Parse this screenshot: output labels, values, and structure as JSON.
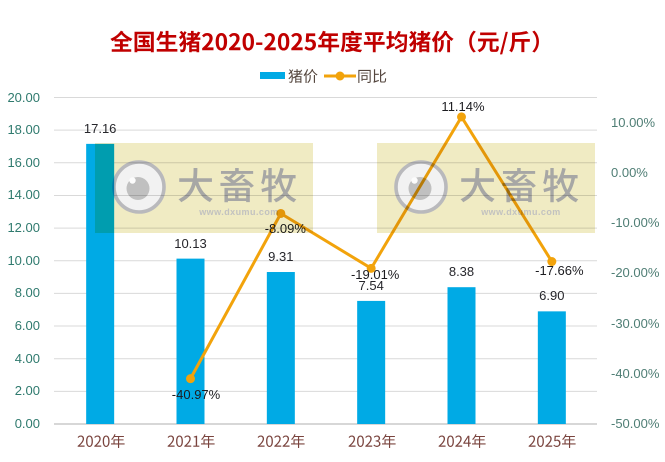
{
  "chart_data": {
    "type": "combo-bar-line",
    "title": "全国生猪2020-2025年度平均猪价（元/斤）",
    "title_color": "#C00000",
    "categories": [
      "2020年",
      "2021年",
      "2022年",
      "2023年",
      "2024年",
      "2025年"
    ],
    "series": [
      {
        "name": "猪价",
        "type": "bar",
        "axis": "left",
        "color": "#00AAE5",
        "values": [
          17.16,
          10.13,
          9.31,
          7.54,
          8.38,
          6.9
        ],
        "labels": [
          "17.16",
          "10.13",
          "9.31",
          "7.54",
          "8.38",
          "6.90"
        ]
      },
      {
        "name": "同比",
        "type": "line",
        "axis": "right",
        "color": "#F2A30B",
        "values": [
          null,
          -40.97,
          -8.09,
          -19.01,
          11.14,
          -17.66
        ],
        "labels": [
          "",
          "-40.97%",
          "-8.09%",
          "-19.01%",
          "11.14%",
          "-17.66%"
        ]
      }
    ],
    "left_axis": {
      "min": 0,
      "max": 20,
      "step": 2,
      "tick_labels": [
        "0.00",
        "2.00",
        "4.00",
        "6.00",
        "8.00",
        "10.00",
        "12.00",
        "14.00",
        "16.00",
        "18.00",
        "20.00"
      ]
    },
    "right_axis": {
      "min": -50,
      "max": 15,
      "step": 10,
      "tick_labels": [
        "10.00%",
        "0.00%",
        "-10.00%",
        "-20.00%",
        "-30.00%",
        "-40.00%",
        "-50.00%"
      ],
      "label_values": [
        10,
        0,
        -10,
        -20,
        -30,
        -40,
        -50
      ]
    },
    "legend": {
      "position": "top",
      "items": [
        {
          "label": "猪价",
          "marker": "bar-swatch"
        },
        {
          "label": "同比",
          "marker": "line-marker"
        }
      ]
    },
    "grid": true,
    "colors": {
      "gridline": "#D9D9D9",
      "axis_line": "#BFBFBF",
      "left_tick_label": "#2F7A6E",
      "right_tick_label": "#4F7E75",
      "x_tick_label": "#7A443E",
      "bar_data_label": "#26262B",
      "line_data_label": "#1C1C20",
      "legend_text": "#55473F"
    }
  },
  "watermark": {
    "brand": "大畜牧",
    "url": "www.dxumu.com",
    "logo": "eye-icon",
    "background": "#F0EBC3"
  }
}
